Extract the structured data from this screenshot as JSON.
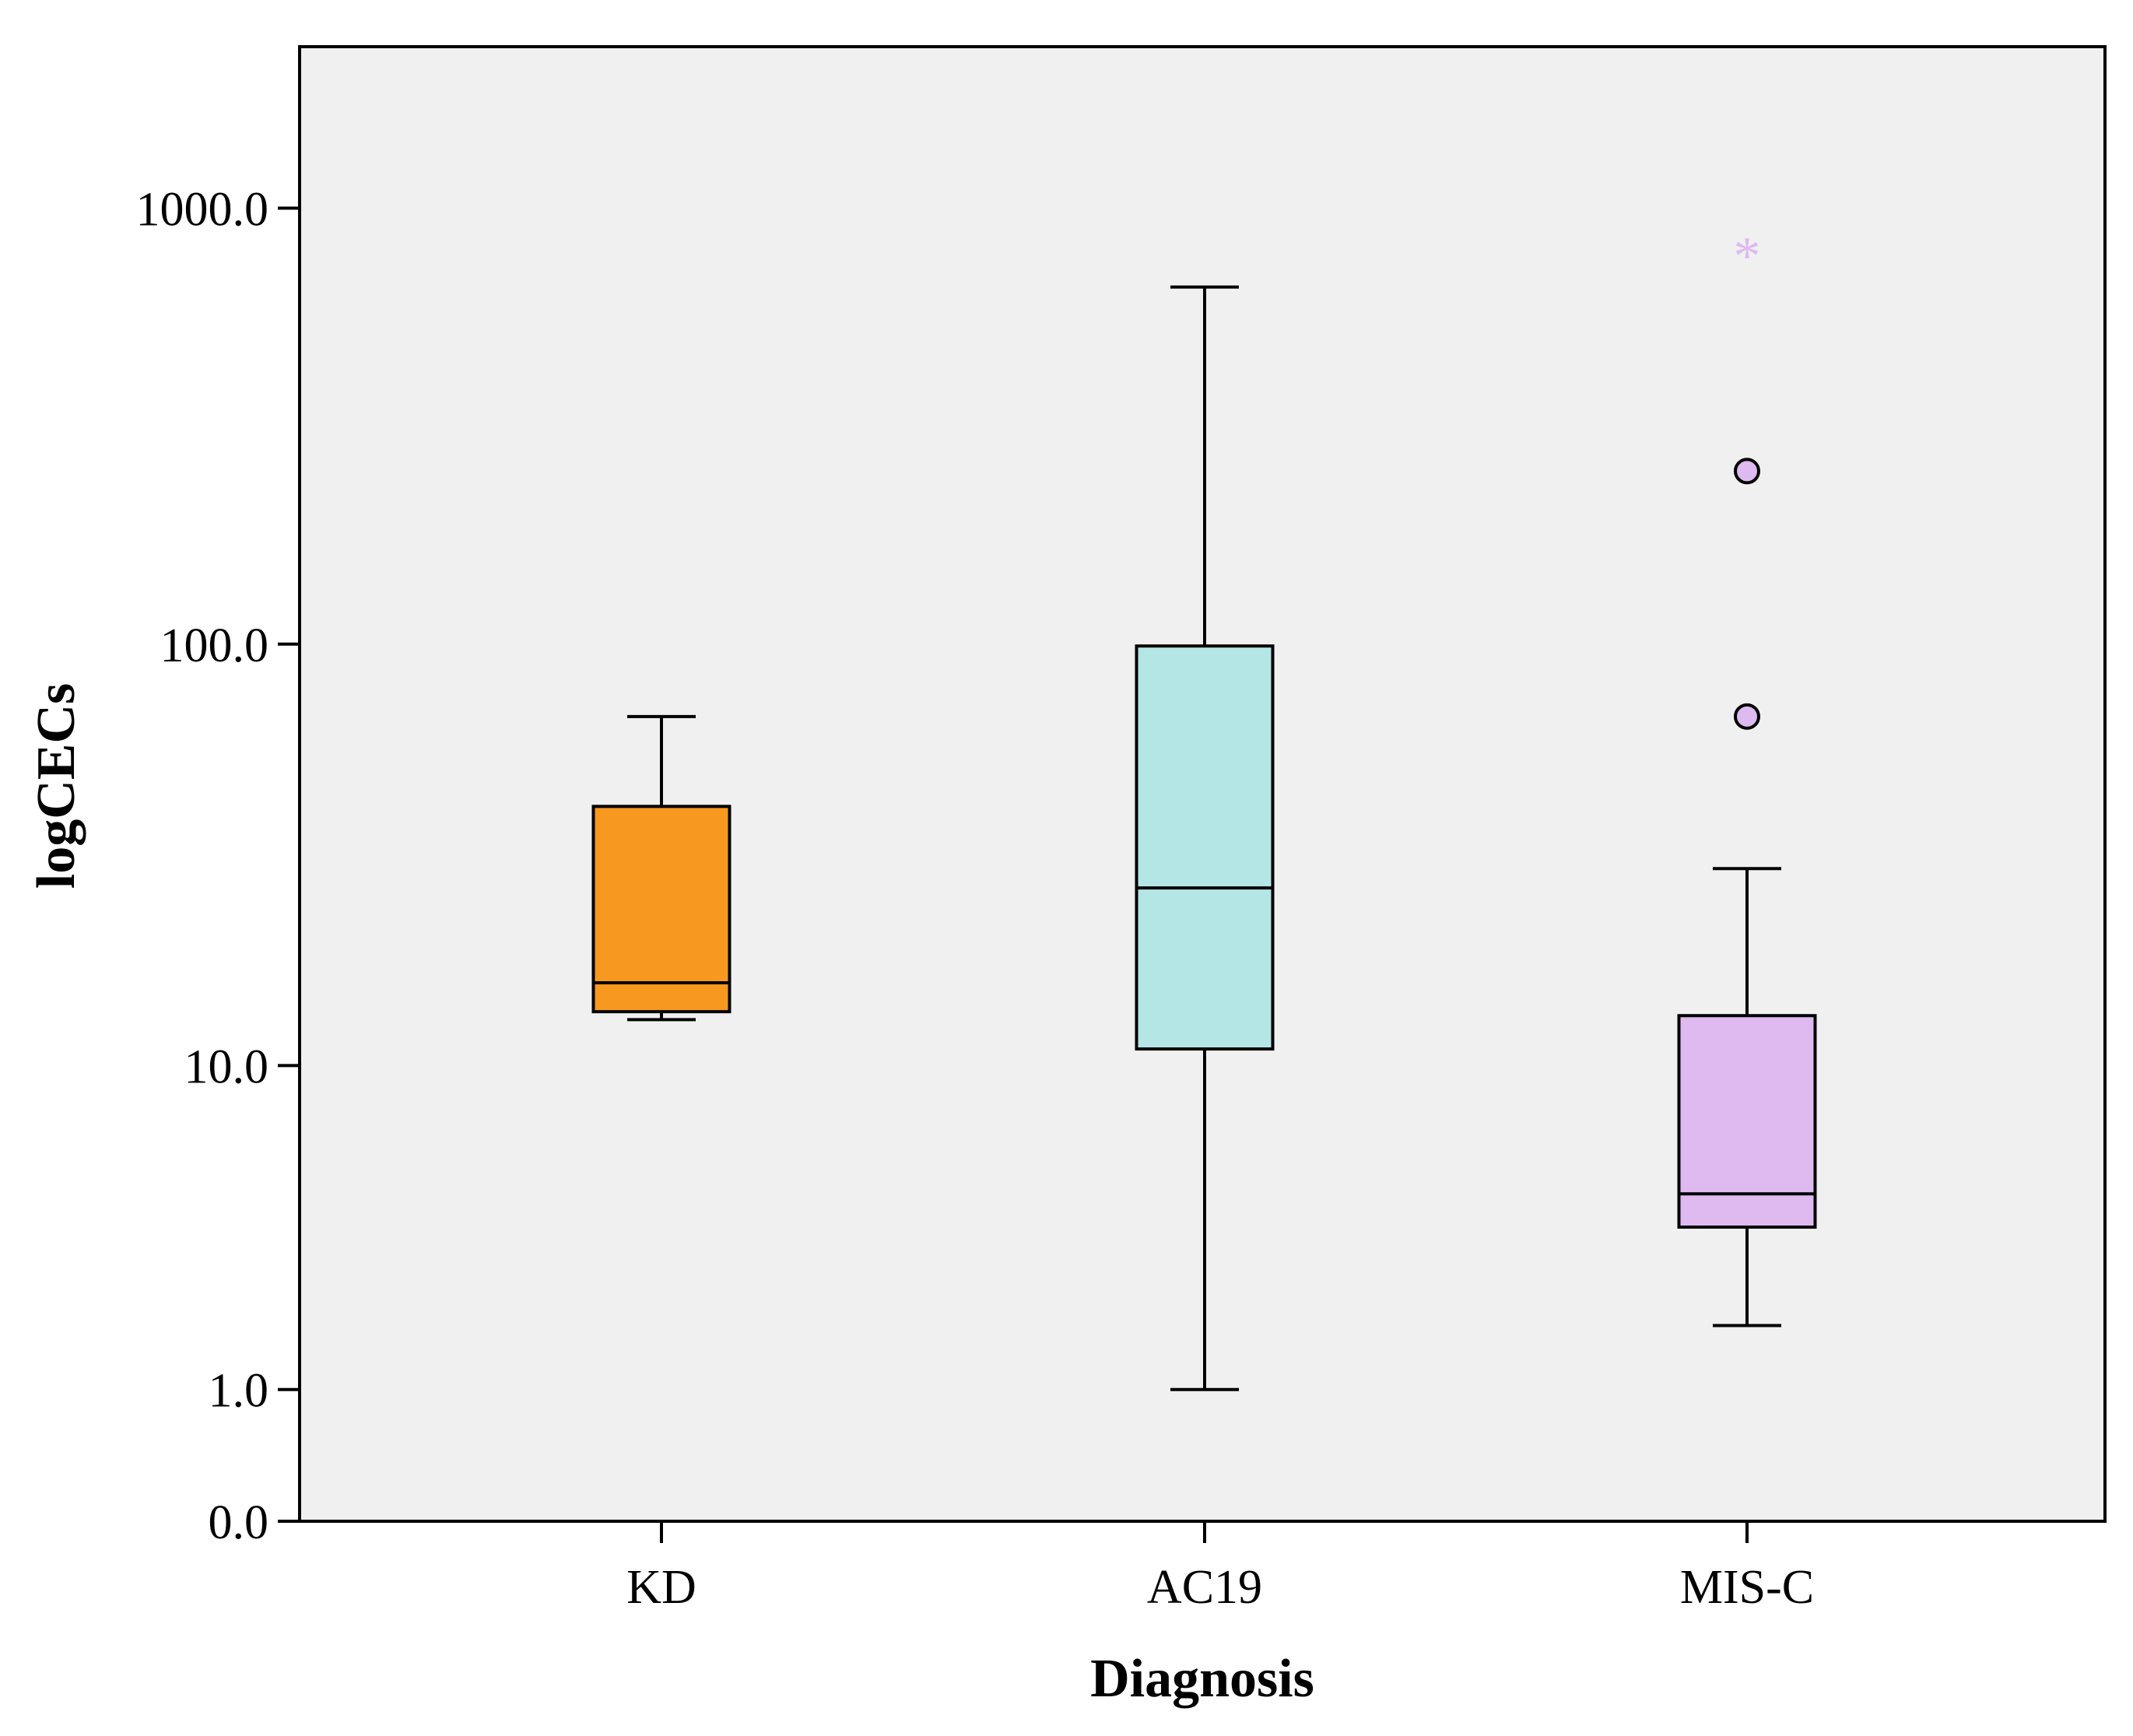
{
  "chart_data": {
    "type": "boxplot",
    "title": "",
    "xlabel": "Diagnosis",
    "ylabel": "logCECs",
    "y_scale": "log(1+y)",
    "y_ticks": [
      0.0,
      1.0,
      10.0,
      100.0,
      1000.0
    ],
    "y_tick_labels": [
      "0.0",
      "1.0",
      "10.0",
      "100.0",
      "1000.0"
    ],
    "categories": [
      "KD",
      "AC19",
      "MIS-C"
    ],
    "boxes": [
      {
        "name": "KD",
        "color": "#F7981F",
        "whisker_low": 13,
        "q1": 13.6,
        "median": 16,
        "q3": 42,
        "whisker_high": 68,
        "outliers": [],
        "extremes": []
      },
      {
        "name": "AC19",
        "color": "#B4E6E6",
        "whisker_low": 1.0,
        "q1": 11,
        "median": 27,
        "q3": 99,
        "whisker_high": 660,
        "outliers": [],
        "extremes": []
      },
      {
        "name": "MIS-C",
        "color": "#DEBAF1",
        "whisker_low": 1.8,
        "q1": 3.7,
        "median": 4.6,
        "q3": 13.3,
        "whisker_high": 30,
        "outliers": [
          68,
          250
        ],
        "extremes": [
          800
        ]
      }
    ],
    "ylim": [
      0,
      2500
    ],
    "grid": false,
    "background": "#F0F0F0"
  }
}
